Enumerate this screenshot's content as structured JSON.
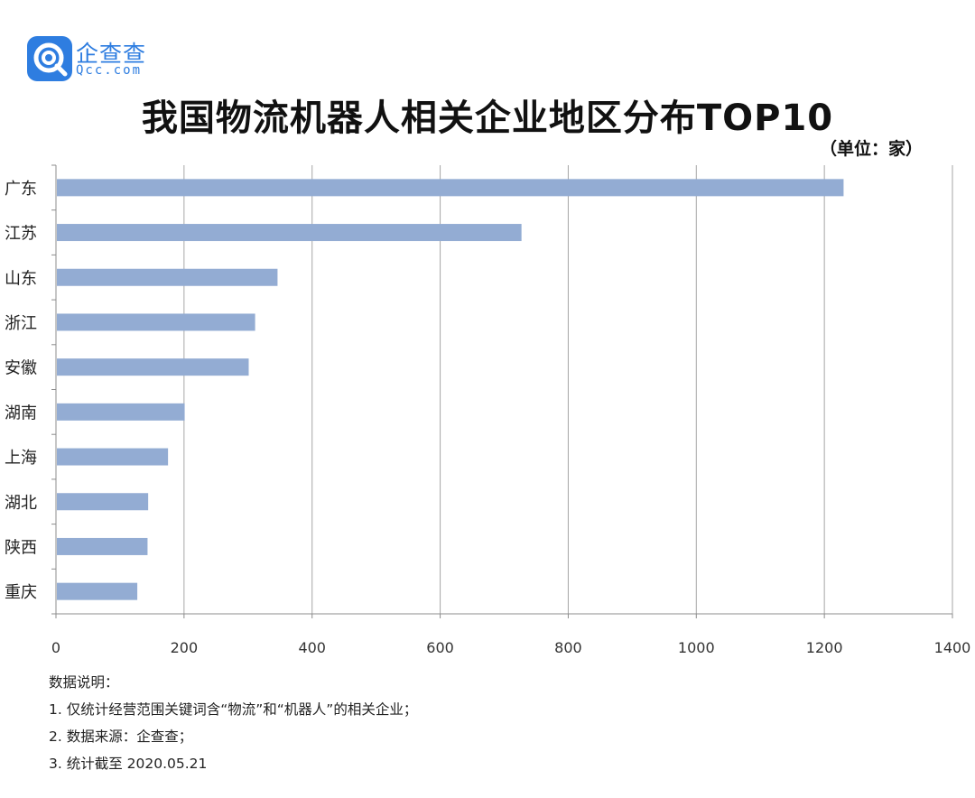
{
  "brand": {
    "name": "企查查",
    "sub": "Qcc.com",
    "color": "#2e7de0"
  },
  "unit_label": "（单位：家）",
  "notes": {
    "heading": "数据说明：",
    "items": [
      "1. 仅统计经营范围关键词含“物流”和“机器人”的相关企业；",
      "2. 数据来源：企查查；",
      "3. 统计截至 2020.05.21"
    ]
  },
  "chart_data": {
    "type": "bar",
    "orientation": "horizontal",
    "title": "我国物流机器人相关企业地区分布TOP10",
    "categories": [
      "广东",
      "江苏",
      "山东",
      "浙江",
      "安徽",
      "湖南",
      "上海",
      "湖北",
      "陕西",
      "重庆"
    ],
    "values": [
      1230,
      727,
      346,
      311,
      301,
      201,
      175,
      144,
      143,
      127
    ],
    "xlim": [
      0,
      1400
    ],
    "xticks": [
      0,
      200,
      400,
      600,
      800,
      1000,
      1200,
      1400
    ],
    "grid": true,
    "bar_color": "#93acd3",
    "legend": "none"
  }
}
